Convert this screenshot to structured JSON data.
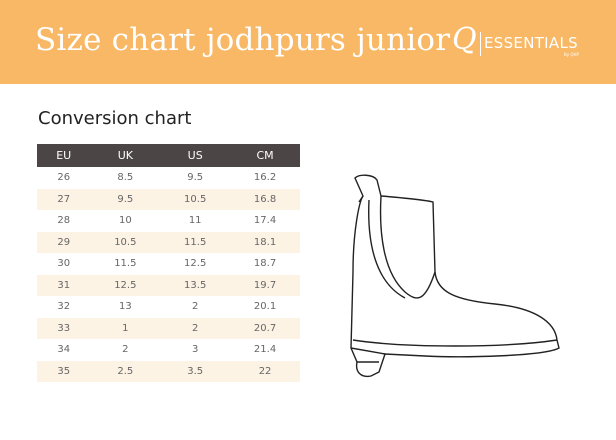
{
  "header": {
    "title": "Size chart jodhpurs junior",
    "logo": {
      "mark": "Q",
      "name": "ESSENTIALS",
      "by": "By QHP"
    }
  },
  "section_title": "Conversion chart",
  "colors": {
    "header_bg": "#f8b865",
    "table_header_bg": "#4b4545",
    "row_alt_bg": "#fdf3e5"
  },
  "table": {
    "columns": [
      "EU",
      "UK",
      "US",
      "CM"
    ],
    "rows": [
      [
        "26",
        "8.5",
        "9.5",
        "16.2"
      ],
      [
        "27",
        "9.5",
        "10.5",
        "16.8"
      ],
      [
        "28",
        "10",
        "11",
        "17.4"
      ],
      [
        "29",
        "10.5",
        "11.5",
        "18.1"
      ],
      [
        "30",
        "11.5",
        "12.5",
        "18.7"
      ],
      [
        "31",
        "12.5",
        "13.5",
        "19.7"
      ],
      [
        "32",
        "13",
        "2",
        "20.1"
      ],
      [
        "33",
        "1",
        "2",
        "20.7"
      ],
      [
        "34",
        "2",
        "3",
        "21.4"
      ],
      [
        "35",
        "2.5",
        "3.5",
        "22"
      ]
    ]
  },
  "illustration": "boot-icon"
}
